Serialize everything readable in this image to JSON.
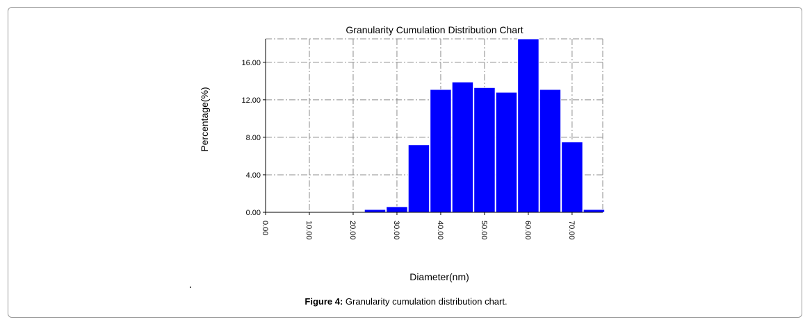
{
  "figure": {
    "caption_label": "Figure 4:",
    "caption_text": " Granularity cumulation distribution chart."
  },
  "chart_data": {
    "type": "bar",
    "title": "Granularity Cumulation Distribution  Chart",
    "xlabel": "Diameter(nm)",
    "ylabel": "Percentage(%)",
    "xlim": [
      0,
      77
    ],
    "ylim": [
      0,
      18.5
    ],
    "grid": true,
    "bar_color": "#0000ff",
    "x_ticks": [
      {
        "value": 0,
        "label": "0.00"
      },
      {
        "value": 10,
        "label": "10.00"
      },
      {
        "value": 20,
        "label": "20.00"
      },
      {
        "value": 30,
        "label": "30.00"
      },
      {
        "value": 40,
        "label": "40.00"
      },
      {
        "value": 50,
        "label": "50.00"
      },
      {
        "value": 60,
        "label": "60.00"
      },
      {
        "value": 70,
        "label": "70.00"
      }
    ],
    "y_ticks": [
      {
        "value": 0,
        "label": "0.00"
      },
      {
        "value": 4,
        "label": "4.00"
      },
      {
        "value": 8,
        "label": "8.00"
      },
      {
        "value": 12,
        "label": "12.00"
      },
      {
        "value": 16,
        "label": "16.00"
      }
    ],
    "bars": [
      {
        "x0": 22.5,
        "x1": 27.5,
        "value": 0.3
      },
      {
        "x0": 27.5,
        "x1": 32.5,
        "value": 0.6
      },
      {
        "x0": 32.5,
        "x1": 37.5,
        "value": 7.2
      },
      {
        "x0": 37.5,
        "x1": 42.5,
        "value": 13.1
      },
      {
        "x0": 42.5,
        "x1": 47.5,
        "value": 13.9
      },
      {
        "x0": 47.5,
        "x1": 52.5,
        "value": 13.3
      },
      {
        "x0": 52.5,
        "x1": 57.5,
        "value": 12.8
      },
      {
        "x0": 57.5,
        "x1": 62.5,
        "value": 18.5
      },
      {
        "x0": 62.5,
        "x1": 67.5,
        "value": 13.1
      },
      {
        "x0": 67.5,
        "x1": 72.5,
        "value": 7.5
      },
      {
        "x0": 72.5,
        "x1": 77.5,
        "value": 0.3
      }
    ]
  }
}
